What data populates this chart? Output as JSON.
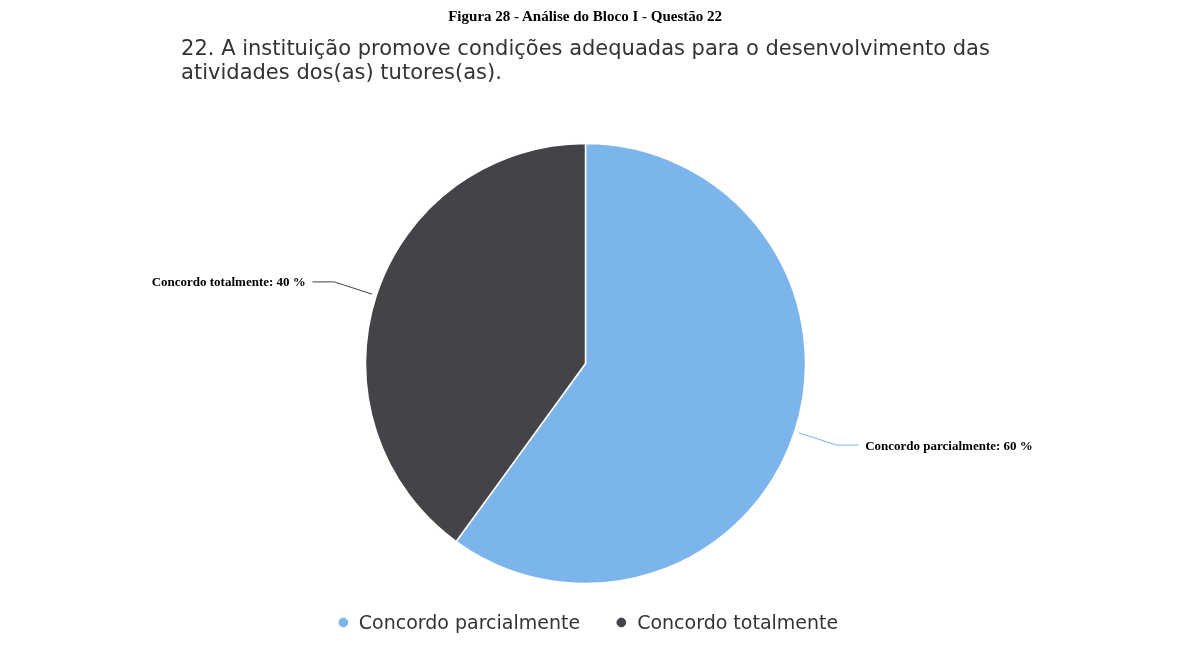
{
  "chart_data": {
    "type": "pie",
    "title": "22. A instituição promove condições adequadas para o desenvolvimento das atividades dos(as) tutores(as).",
    "annotations": [
      "Figura 28 - Análise do Bloco I - Questão 22"
    ],
    "categories": [
      "Concordo parcialmente",
      "Concordo totalmente"
    ],
    "values": [
      60,
      40
    ],
    "colors": [
      "#7cb5ec",
      "#434348"
    ],
    "value_labels": [
      "Concordo parcialmente: 60 %",
      "Concordo totalmente: 40 %"
    ],
    "legend": "bottom"
  }
}
